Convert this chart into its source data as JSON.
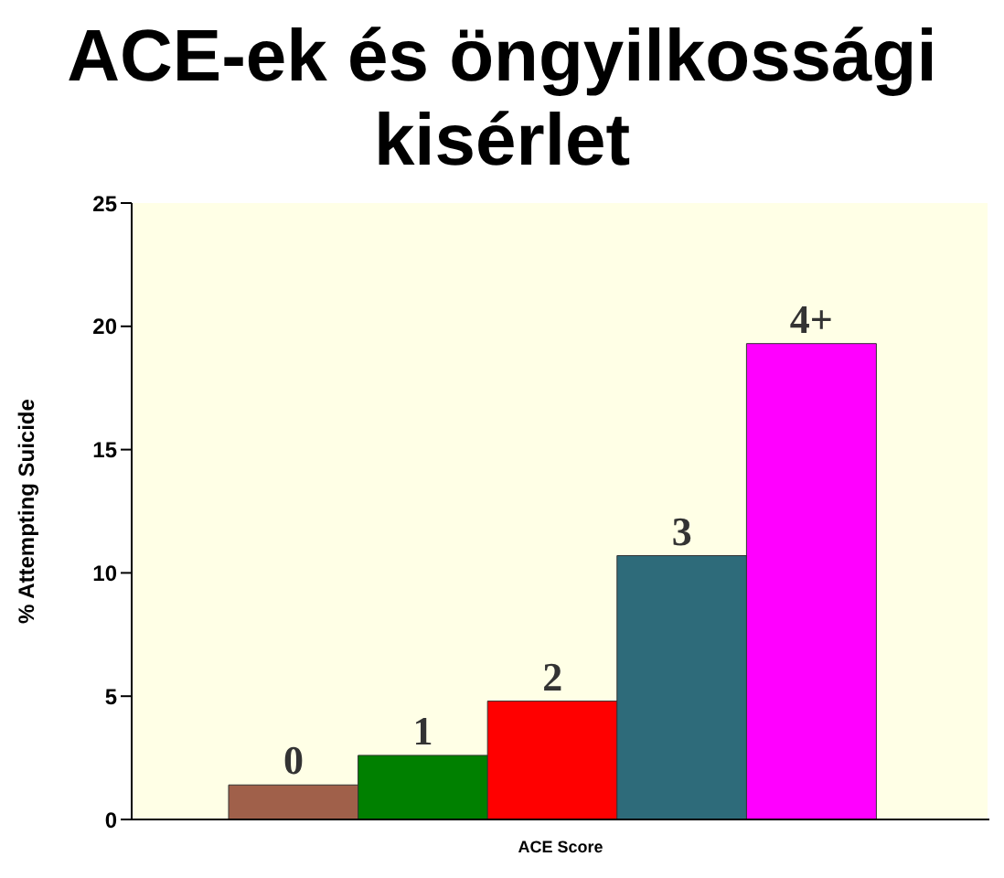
{
  "chart_data": {
    "type": "bar",
    "title": "ACE-ek és öngyilkossági kisérlet",
    "xlabel": "ACE Score",
    "ylabel": "% Attempting Suicide",
    "categories": [
      "0",
      "1",
      "2",
      "3",
      "4+"
    ],
    "values": [
      1.4,
      2.6,
      4.8,
      10.7,
      19.3
    ],
    "colors": [
      "#a0604a",
      "#008000",
      "#ff0000",
      "#2e6b7a",
      "#ff00ff"
    ],
    "ylim": [
      0,
      25
    ],
    "yticks": [
      0,
      5,
      10,
      15,
      20,
      25
    ],
    "grid": false,
    "legend": false
  }
}
